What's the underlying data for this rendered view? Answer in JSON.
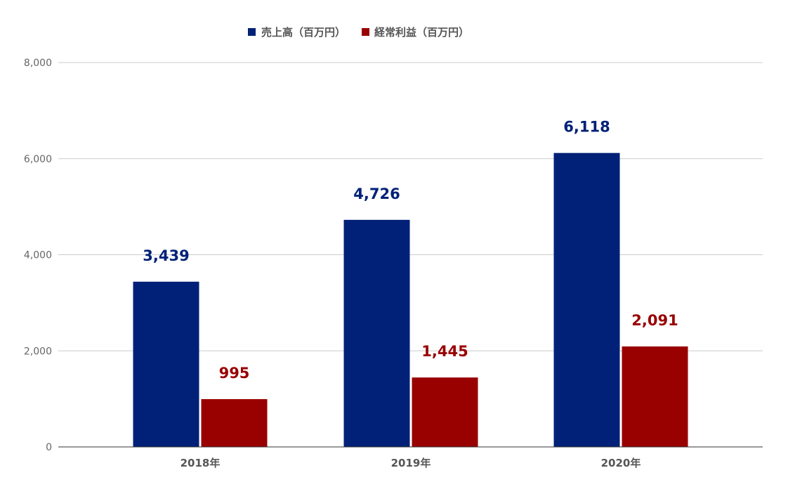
{
  "chart_data": {
    "type": "bar",
    "title": "",
    "xlabel": "",
    "ylabel": "",
    "categories": [
      "2018年",
      "2019年",
      "2020年"
    ],
    "series": [
      {
        "name": "売上高（百万円）",
        "color": "#002177",
        "values": [
          3439,
          4726,
          6118
        ],
        "labels": [
          "3,439",
          "4,726",
          "6,118"
        ]
      },
      {
        "name": "経常利益（百万円）",
        "color": "#990000",
        "values": [
          995,
          1445,
          2091
        ],
        "labels": [
          "995",
          "1,445",
          "2,091"
        ]
      }
    ],
    "ylim": [
      0,
      8000
    ],
    "yticks": [
      0,
      2000,
      4000,
      6000,
      8000
    ],
    "ytick_labels": [
      "0",
      "2,000",
      "4,000",
      "6,000",
      "8,000"
    ],
    "grid": true,
    "legend_position": "top-center",
    "data_labels": true
  }
}
